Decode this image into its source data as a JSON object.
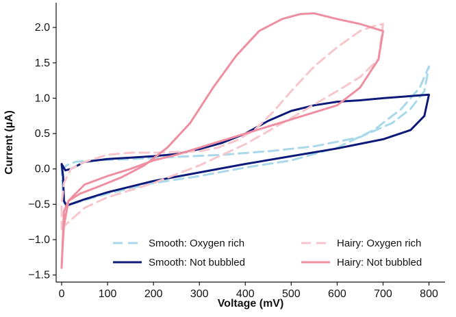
{
  "chart_data": {
    "type": "line",
    "title": "",
    "xlabel": "Voltage (mV)",
    "ylabel": "Current (µA)",
    "xlim": [
      -12,
      835
    ],
    "ylim": [
      -1.6,
      2.35
    ],
    "grid": false,
    "legend_position": "bottom-right",
    "xticks": [
      {
        "value": 0,
        "label": "0"
      },
      {
        "value": 100,
        "label": "100"
      },
      {
        "value": 200,
        "label": "200"
      },
      {
        "value": 300,
        "label": "300"
      },
      {
        "value": 400,
        "label": "400"
      },
      {
        "value": 500,
        "label": "500"
      },
      {
        "value": 600,
        "label": "600"
      },
      {
        "value": 700,
        "label": "700"
      },
      {
        "value": 800,
        "label": "800"
      }
    ],
    "yticks": [
      {
        "value": -1.5,
        "label": "−1.5"
      },
      {
        "value": -1.0,
        "label": "−1.0"
      },
      {
        "value": -0.5,
        "label": "−0.5"
      },
      {
        "value": 0.0,
        "label": "0.0"
      },
      {
        "value": 0.5,
        "label": "0.5"
      },
      {
        "value": 1.0,
        "label": "1.0"
      },
      {
        "value": 1.5,
        "label": "1.5"
      },
      {
        "value": 2.0,
        "label": "2.0"
      }
    ],
    "series": [
      {
        "name": "Smooth: Oxygen rich",
        "color": "#a8d8ea",
        "dash": "dashed",
        "points": [
          [
            0,
            0.05
          ],
          [
            2,
            -0.3
          ],
          [
            5,
            -0.48
          ],
          [
            20,
            -0.5
          ],
          [
            50,
            -0.44
          ],
          [
            100,
            -0.35
          ],
          [
            200,
            -0.2
          ],
          [
            300,
            -0.1
          ],
          [
            400,
            0.02
          ],
          [
            500,
            0.12
          ],
          [
            600,
            0.3
          ],
          [
            680,
            0.55
          ],
          [
            740,
            0.85
          ],
          [
            780,
            1.15
          ],
          [
            800,
            1.45
          ],
          [
            790,
            1.1
          ],
          [
            760,
            0.85
          ],
          [
            720,
            0.65
          ],
          [
            650,
            0.45
          ],
          [
            550,
            0.32
          ],
          [
            450,
            0.25
          ],
          [
            350,
            0.2
          ],
          [
            250,
            0.17
          ],
          [
            150,
            0.14
          ],
          [
            70,
            0.12
          ],
          [
            30,
            0.1
          ],
          [
            10,
            0.05
          ],
          [
            3,
            0.0
          ]
        ]
      },
      {
        "name": "Smooth: Not bubbled",
        "color": "#0d1a7a",
        "dash": "solid",
        "points": [
          [
            0,
            0.07
          ],
          [
            3,
            -0.1
          ],
          [
            5,
            -0.45
          ],
          [
            10,
            -0.52
          ],
          [
            50,
            -0.43
          ],
          [
            100,
            -0.33
          ],
          [
            200,
            -0.17
          ],
          [
            300,
            -0.05
          ],
          [
            400,
            0.07
          ],
          [
            500,
            0.18
          ],
          [
            600,
            0.29
          ],
          [
            700,
            0.42
          ],
          [
            760,
            0.55
          ],
          [
            790,
            0.75
          ],
          [
            800,
            1.05
          ],
          [
            780,
            1.04
          ],
          [
            740,
            1.02
          ],
          [
            700,
            1.0
          ],
          [
            650,
            0.97
          ],
          [
            600,
            0.95
          ],
          [
            550,
            0.9
          ],
          [
            500,
            0.82
          ],
          [
            450,
            0.68
          ],
          [
            400,
            0.5
          ],
          [
            350,
            0.37
          ],
          [
            300,
            0.28
          ],
          [
            250,
            0.21
          ],
          [
            200,
            0.18
          ],
          [
            150,
            0.16
          ],
          [
            100,
            0.14
          ],
          [
            50,
            0.1
          ],
          [
            20,
            0.0
          ],
          [
            8,
            -0.02
          ]
        ]
      },
      {
        "name": "Hairy: Oxygen rich",
        "color": "#f7c6cc",
        "dash": "dashed",
        "points": [
          [
            0,
            -0.85
          ],
          [
            10,
            -0.78
          ],
          [
            50,
            -0.55
          ],
          [
            100,
            -0.4
          ],
          [
            200,
            -0.2
          ],
          [
            300,
            0.05
          ],
          [
            400,
            0.35
          ],
          [
            500,
            0.72
          ],
          [
            600,
            1.1
          ],
          [
            650,
            1.3
          ],
          [
            690,
            1.55
          ],
          [
            700,
            2.05
          ],
          [
            680,
            2.02
          ],
          [
            650,
            1.95
          ],
          [
            600,
            1.72
          ],
          [
            550,
            1.45
          ],
          [
            500,
            1.1
          ],
          [
            460,
            0.8
          ],
          [
            420,
            0.55
          ],
          [
            380,
            0.4
          ],
          [
            340,
            0.3
          ],
          [
            300,
            0.25
          ],
          [
            250,
            0.24
          ],
          [
            200,
            0.23
          ],
          [
            150,
            0.23
          ],
          [
            100,
            0.2
          ],
          [
            50,
            0.1
          ],
          [
            20,
            0.0
          ],
          [
            5,
            -0.2
          ],
          [
            0,
            -0.5
          ]
        ]
      },
      {
        "name": "Hairy: Not bubbled",
        "color": "#ee8ea0",
        "dash": "solid",
        "points": [
          [
            0,
            -1.4
          ],
          [
            2,
            -1.1
          ],
          [
            5,
            -0.8
          ],
          [
            15,
            -0.45
          ],
          [
            50,
            -0.22
          ],
          [
            100,
            -0.1
          ],
          [
            150,
            0.0
          ],
          [
            200,
            0.12
          ],
          [
            250,
            0.2
          ],
          [
            300,
            0.3
          ],
          [
            400,
            0.5
          ],
          [
            500,
            0.7
          ],
          [
            600,
            0.9
          ],
          [
            650,
            1.15
          ],
          [
            690,
            1.55
          ],
          [
            700,
            1.95
          ],
          [
            650,
            2.05
          ],
          [
            600,
            2.12
          ],
          [
            550,
            2.2
          ],
          [
            520,
            2.19
          ],
          [
            480,
            2.12
          ],
          [
            430,
            1.95
          ],
          [
            380,
            1.6
          ],
          [
            330,
            1.15
          ],
          [
            280,
            0.65
          ],
          [
            230,
            0.3
          ],
          [
            180,
            0.05
          ],
          [
            130,
            -0.12
          ],
          [
            80,
            -0.25
          ],
          [
            40,
            -0.35
          ],
          [
            15,
            -0.45
          ],
          [
            5,
            -0.6
          ]
        ]
      }
    ]
  }
}
